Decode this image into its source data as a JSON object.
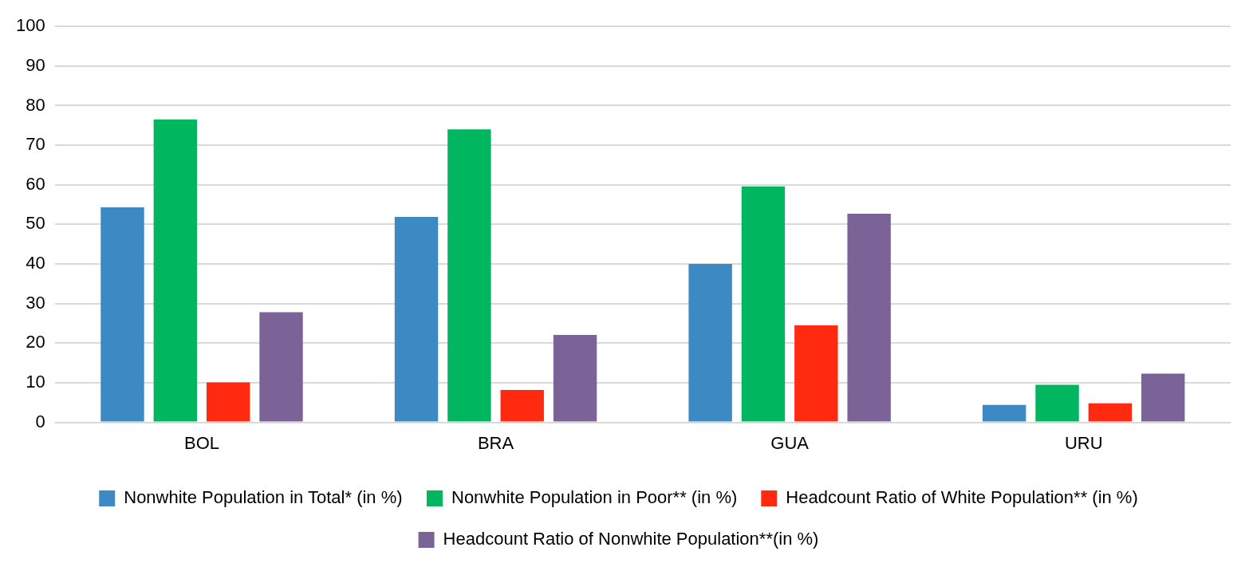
{
  "chart_data": {
    "type": "bar",
    "categories": [
      "BOL",
      "BRA",
      "GUA",
      "URU"
    ],
    "series": [
      {
        "name": "Nonwhite Population in Total* (in %)",
        "color": "#3c89c4",
        "values": [
          54.3,
          51.9,
          40,
          4.4
        ]
      },
      {
        "name": "Nonwhite Population in Poor** (in %)",
        "color": "#00b65e",
        "values": [
          76.5,
          74,
          59.6,
          9.5
        ]
      },
      {
        "name": "Headcount Ratio of White Population** (in %)",
        "color": "#ff2a10",
        "values": [
          10.1,
          8.2,
          24.5,
          4.8
        ]
      },
      {
        "name": "Headcount Ratio of Nonwhite Population**(in %)",
        "color": "#7b6397",
        "values": [
          27.8,
          22.1,
          52.7,
          12.3
        ]
      }
    ],
    "ylim": [
      0,
      100
    ],
    "yticks": [
      0,
      10,
      20,
      30,
      40,
      50,
      60,
      70,
      80,
      90,
      100
    ],
    "grid": "y",
    "legend": "bottom"
  }
}
